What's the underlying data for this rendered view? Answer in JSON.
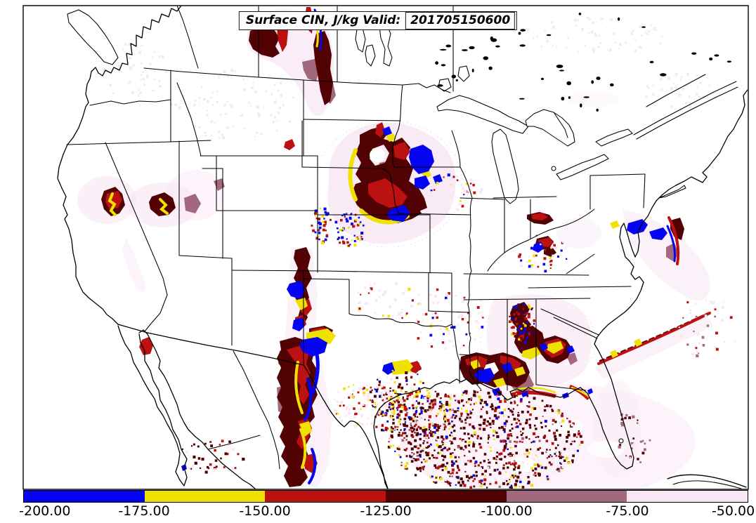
{
  "title": {
    "label": "Surface CIN, J/kg Valid:",
    "value": "201705150600"
  },
  "colorbar": {
    "units": "J/kg",
    "ticks": [
      "-200.00",
      "-175.00",
      "-150.00",
      "-125.00",
      "-100.00",
      "-75.00",
      "-50.00"
    ],
    "segments": [
      {
        "from": -200,
        "to": -175,
        "name": "blue",
        "color": "#0404f0"
      },
      {
        "from": -175,
        "to": -150,
        "name": "yellow",
        "color": "#efe202"
      },
      {
        "from": -150,
        "to": -125,
        "name": "red",
        "color": "#bc1111"
      },
      {
        "from": -125,
        "to": -100,
        "name": "maroon",
        "color": "#520202"
      },
      {
        "from": -100,
        "to": -75,
        "name": "mauve",
        "color": "#a2687e"
      },
      {
        "from": -75,
        "to": -50,
        "name": "pale-pink",
        "color": "#f8e6f4"
      }
    ]
  },
  "palette": {
    "blue": "#0404f0",
    "yellow": "#efe202",
    "red": "#bc1111",
    "maroon": "#520202",
    "mauve": "#a2687e",
    "palepink": "#f8e6f4",
    "outline": "#000000",
    "background": "#ffffff"
  }
}
